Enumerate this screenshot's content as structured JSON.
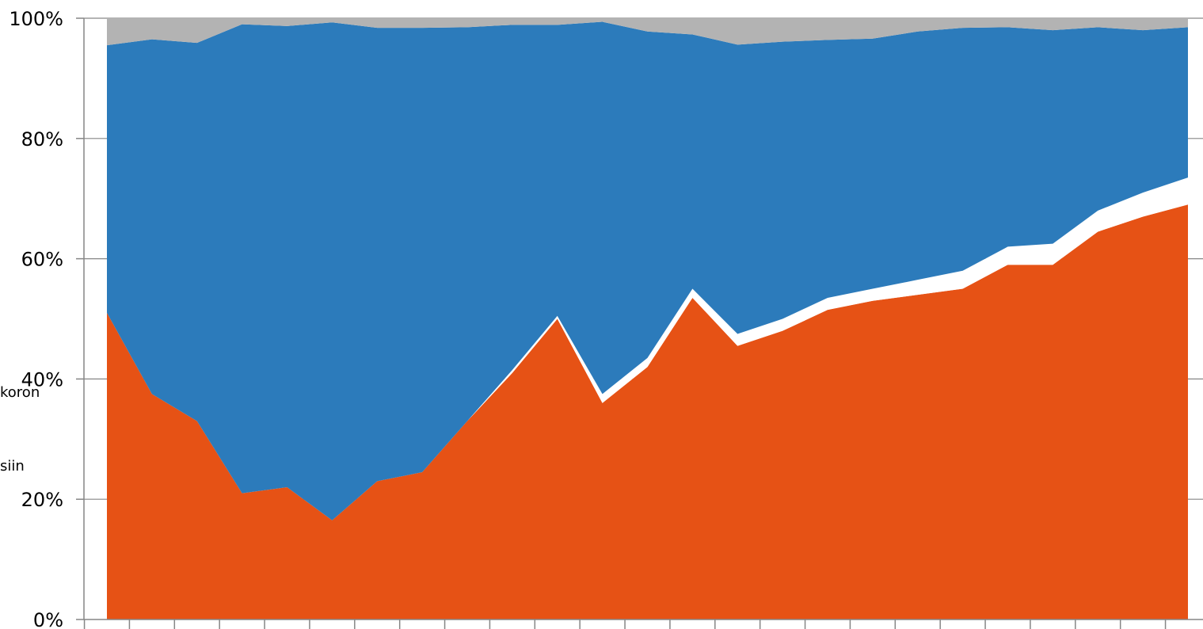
{
  "chart_data": {
    "type": "area",
    "stacked": true,
    "normalized_percent": true,
    "title": "",
    "xlabel": "",
    "ylabel": "",
    "ylim": [
      0,
      100
    ],
    "yticks": [
      "0%",
      "20%",
      "40%",
      "60%",
      "80%",
      "100%"
    ],
    "grid": "horizontal",
    "x_category_count": 25,
    "series": [
      {
        "color": "#E65215",
        "values": [
          51,
          37.5,
          33,
          21,
          22,
          16.5,
          23,
          24.5,
          33,
          41,
          50,
          36,
          42,
          53.5,
          45.5,
          48,
          51.5,
          53,
          54,
          55,
          59,
          59,
          64.5,
          67,
          69
        ]
      },
      {
        "color": "#FFFFFF",
        "values": [
          0,
          0,
          0,
          0,
          0,
          0,
          0,
          0,
          0,
          0.5,
          0.5,
          1.5,
          1.5,
          1.5,
          2,
          2,
          2,
          2,
          2.5,
          3,
          3,
          3.5,
          3.5,
          4,
          4.5
        ]
      },
      {
        "color": "#2C7BBB",
        "values": [
          44.5,
          59,
          62.9,
          78,
          76.7,
          82.8,
          75.4,
          73.9,
          65.5,
          57.4,
          48.4,
          61.9,
          54.3,
          42.3,
          48.1,
          46.1,
          42.9,
          41.6,
          41.3,
          40.4,
          36.5,
          35.5,
          30.5,
          27,
          25
        ]
      },
      {
        "color": "#B3B3B3",
        "values": [
          4.5,
          3.5,
          4.1,
          1,
          1.3,
          0.7,
          1.6,
          1.6,
          1.5,
          1.1,
          1.1,
          0.6,
          2.2,
          2.7,
          4.4,
          3.9,
          3.6,
          3.4,
          2.2,
          1.6,
          1.5,
          2,
          1.5,
          2,
          1.5
        ]
      }
    ],
    "clipped_texts": [
      "koron",
      "siin"
    ]
  }
}
